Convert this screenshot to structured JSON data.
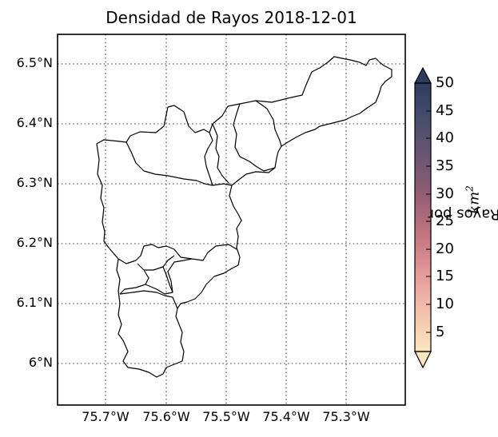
{
  "map": {
    "title": "Densidad de Rayos 2018-12-01",
    "lat_ticks": [
      "6.5°N",
      "6.4°N",
      "6.3°N",
      "6.2°N",
      "6.1°N",
      "6°N"
    ],
    "lon_ticks": [
      "75.7°W",
      "75.6°W",
      "75.5°W",
      "75.4°W",
      "75.3°W"
    ],
    "gridlines": true,
    "boundary_color": "#000000"
  },
  "colorbar": {
    "label_prefix": "Rayos por ",
    "label_unit": "km",
    "label_exp": "2",
    "ticks": [
      "50",
      "45",
      "40",
      "35",
      "30",
      "25",
      "20",
      "15",
      "10",
      "5"
    ],
    "colors": [
      "#2c3e5f",
      "#4a4d6c",
      "#6b5672",
      "#935e75",
      "#c2777f",
      "#e4999a",
      "#f3c1ac",
      "#fbe6c1"
    ]
  }
}
